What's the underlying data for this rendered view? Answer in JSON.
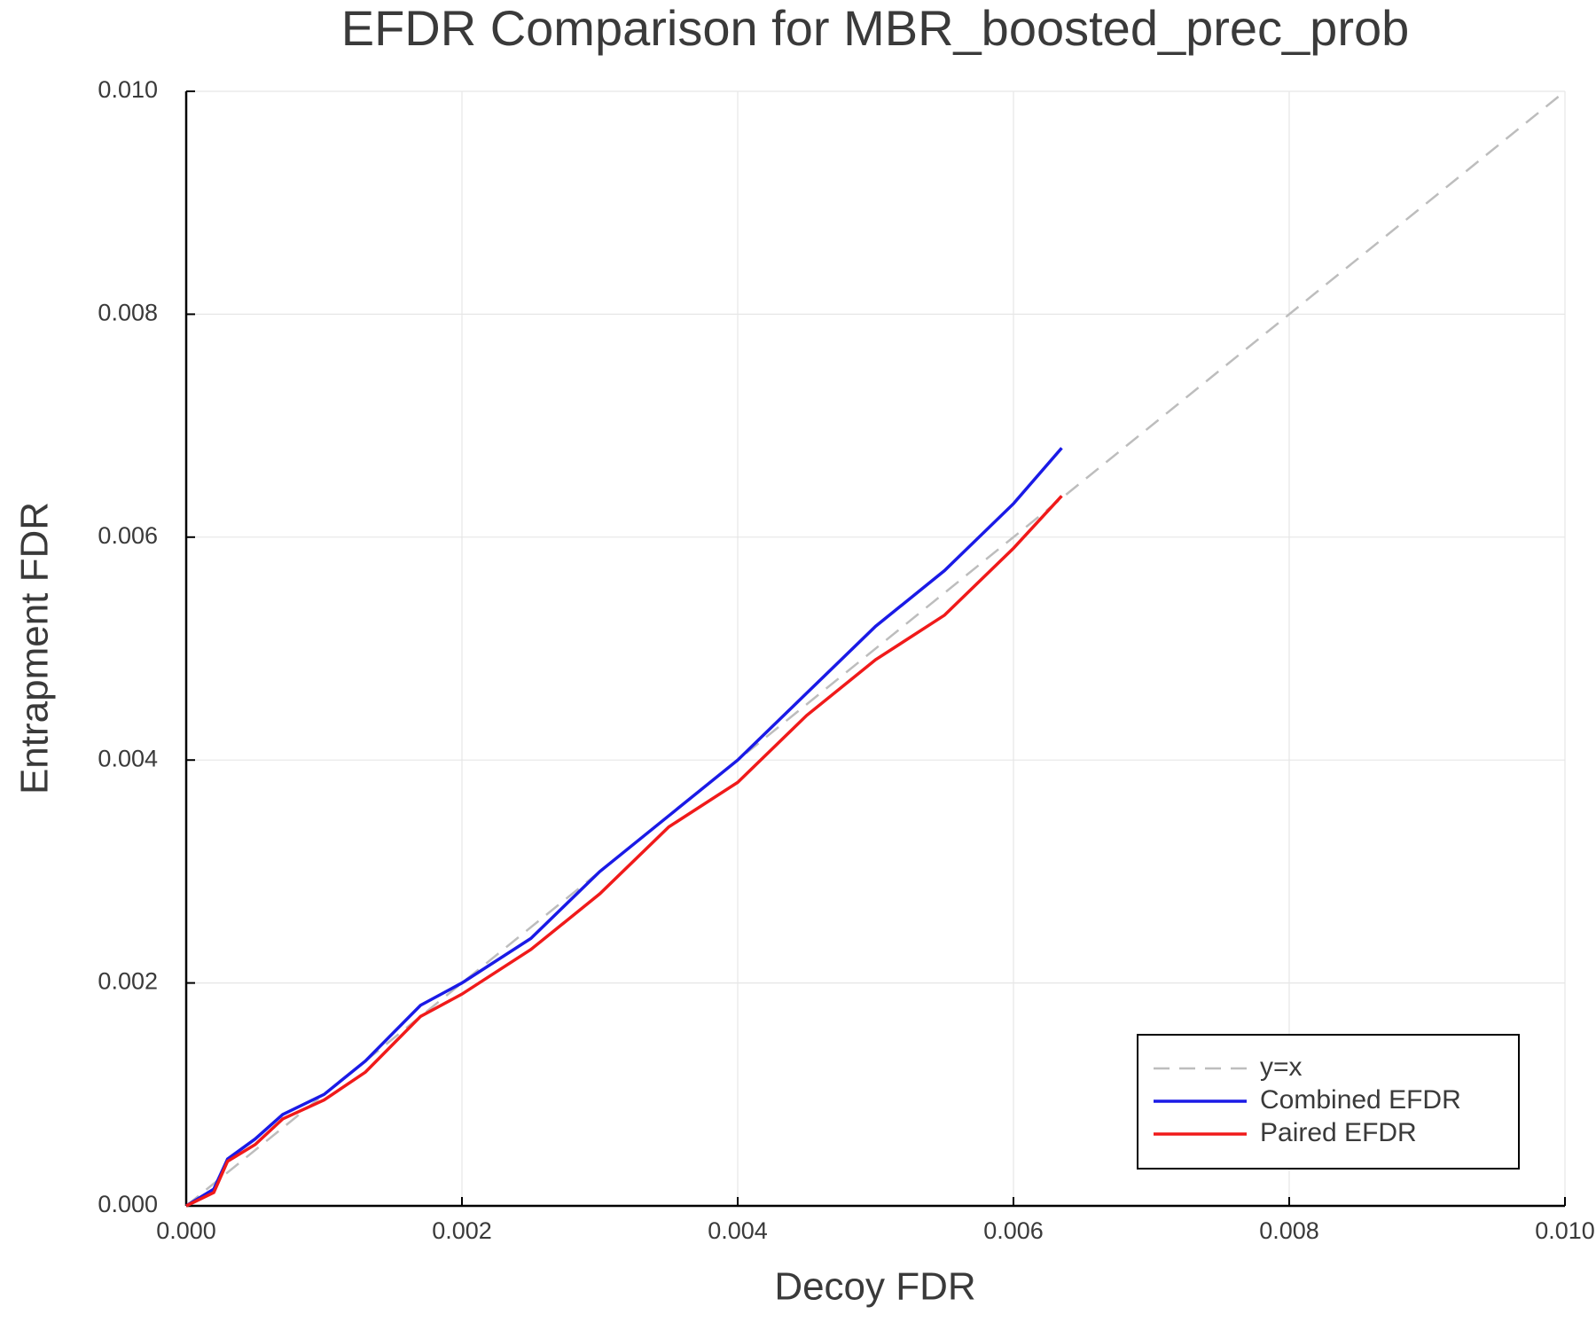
{
  "chart_data": {
    "type": "line",
    "title": "EFDR Comparison for MBR_boosted_prec_prob",
    "x_label": "Decoy FDR",
    "y_label": "Entrapment FDR",
    "xlim": [
      0,
      0.01
    ],
    "ylim": [
      0,
      0.01
    ],
    "xticks": [
      {
        "value": 0,
        "label": "0.000"
      },
      {
        "value": 0.002,
        "label": "0.002"
      },
      {
        "value": 0.004,
        "label": "0.004"
      },
      {
        "value": 0.006,
        "label": "0.006"
      },
      {
        "value": 0.008,
        "label": "0.008"
      },
      {
        "value": 0.01,
        "label": "0.010"
      }
    ],
    "yticks": [
      {
        "value": 0,
        "label": "0.000"
      },
      {
        "value": 0.002,
        "label": "0.002"
      },
      {
        "value": 0.004,
        "label": "0.004"
      },
      {
        "value": 0.006,
        "label": "0.006"
      },
      {
        "value": 0.008,
        "label": "0.008"
      },
      {
        "value": 0.01,
        "label": "0.010"
      }
    ],
    "grid": true,
    "legend": "lower right",
    "series": [
      {
        "name": "y=x",
        "color": "#bdbdbd",
        "dashed": true,
        "x": [
          0,
          0.01
        ],
        "values": [
          0,
          0.01
        ]
      },
      {
        "name": "Combined EFDR",
        "color": "#1a1ae6",
        "x": [
          0,
          0.0002,
          0.0003,
          0.0005,
          0.0007,
          0.001,
          0.0013,
          0.0017,
          0.002,
          0.0025,
          0.003,
          0.0035,
          0.004,
          0.0045,
          0.005,
          0.0055,
          0.006,
          0.00635
        ],
        "values": [
          0,
          0.00015,
          0.00042,
          0.0006,
          0.00082,
          0.001,
          0.0013,
          0.0018,
          0.002,
          0.0024,
          0.003,
          0.0035,
          0.004,
          0.0046,
          0.0052,
          0.0057,
          0.0063,
          0.0068
        ]
      },
      {
        "name": "Paired EFDR",
        "color": "#f01a1a",
        "x": [
          0,
          0.0002,
          0.0003,
          0.0005,
          0.0007,
          0.001,
          0.0013,
          0.0017,
          0.002,
          0.0025,
          0.003,
          0.0035,
          0.004,
          0.0045,
          0.005,
          0.0055,
          0.006,
          0.00635
        ],
        "values": [
          0,
          0.00012,
          0.0004,
          0.00055,
          0.00078,
          0.00095,
          0.0012,
          0.0017,
          0.0019,
          0.0023,
          0.0028,
          0.0034,
          0.0038,
          0.0044,
          0.0049,
          0.0053,
          0.0059,
          0.00637
        ]
      }
    ]
  }
}
